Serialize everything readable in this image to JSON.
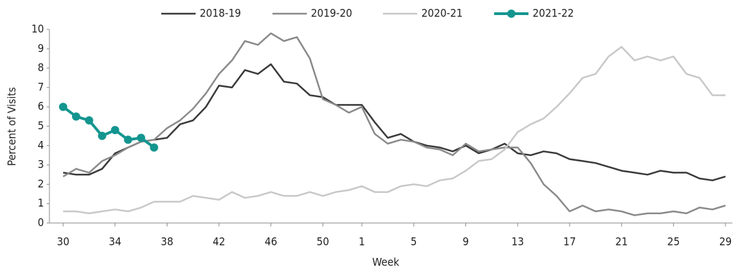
{
  "chart_data": {
    "type": "line",
    "x_label": "Week",
    "y_label": "Percent of Visits",
    "categories": [
      "30",
      null,
      null,
      null,
      "34",
      null,
      null,
      null,
      "38",
      null,
      null,
      null,
      "42",
      null,
      null,
      null,
      "46",
      null,
      null,
      null,
      "50",
      null,
      null,
      "1",
      null,
      null,
      null,
      "5",
      null,
      null,
      null,
      "9",
      null,
      null,
      null,
      "13",
      null,
      null,
      null,
      "17",
      null,
      null,
      null,
      "21",
      null,
      null,
      null,
      "25",
      null,
      null,
      null,
      "29"
    ],
    "ylim": [
      0,
      10
    ],
    "yticks": [
      0,
      1,
      2,
      3,
      4,
      5,
      6,
      7,
      8,
      9,
      10
    ],
    "legend": "top",
    "series": [
      {
        "name": "2018-19",
        "color": "#3a3a3a",
        "values": [
          2.6,
          2.5,
          2.5,
          2.8,
          3.6,
          3.9,
          4.2,
          4.3,
          4.4,
          5.1,
          5.3,
          6.0,
          7.1,
          7.0,
          7.9,
          7.7,
          8.2,
          7.3,
          7.2,
          6.6,
          6.5,
          6.1,
          6.1,
          6.1,
          5.2,
          4.4,
          4.6,
          4.2,
          4.0,
          3.9,
          3.7,
          4.0,
          3.6,
          3.8,
          4.1,
          3.6,
          3.5,
          3.7,
          3.6,
          3.3,
          3.2,
          3.1,
          2.9,
          2.7,
          2.6,
          2.5,
          2.7,
          2.6,
          2.6,
          2.3,
          2.2,
          2.4
        ]
      },
      {
        "name": "2019-20",
        "color": "#8a8a8a",
        "values": [
          2.4,
          2.8,
          2.6,
          3.2,
          3.5,
          3.9,
          4.2,
          4.3,
          4.9,
          5.3,
          5.9,
          6.7,
          7.7,
          8.4,
          9.4,
          9.2,
          9.8,
          9.4,
          9.6,
          8.5,
          6.4,
          6.1,
          5.7,
          6.0,
          4.6,
          4.1,
          4.3,
          4.2,
          3.9,
          3.8,
          3.5,
          4.1,
          3.7,
          3.8,
          3.9,
          3.9,
          3.1,
          2.0,
          1.4,
          0.6,
          0.9,
          0.6,
          0.7,
          0.6,
          0.4,
          0.5,
          0.5,
          0.6,
          0.5,
          0.8,
          0.7,
          0.9
        ]
      },
      {
        "name": "2020-21",
        "color": "#c8c8c8",
        "values": [
          0.6,
          0.6,
          0.5,
          0.6,
          0.7,
          0.6,
          0.8,
          1.1,
          1.1,
          1.1,
          1.4,
          1.3,
          1.2,
          1.6,
          1.3,
          1.4,
          1.6,
          1.4,
          1.4,
          1.6,
          1.4,
          1.6,
          1.7,
          1.9,
          1.6,
          1.6,
          1.9,
          2.0,
          1.9,
          2.2,
          2.3,
          2.7,
          3.2,
          3.3,
          3.8,
          4.7,
          5.1,
          5.4,
          6.0,
          6.7,
          7.5,
          7.7,
          8.6,
          9.1,
          8.4,
          8.6,
          8.4,
          8.6,
          7.7,
          7.5,
          6.6,
          6.6
        ]
      },
      {
        "name": "2021-22",
        "color": "#13958f",
        "markers": true,
        "values": [
          6.0,
          5.5,
          5.3,
          4.5,
          4.8,
          4.3,
          4.4,
          3.9,
          null,
          null,
          null,
          null,
          null,
          null,
          null,
          null,
          null,
          null,
          null,
          null,
          null,
          null,
          null,
          null,
          null,
          null,
          null,
          null,
          null,
          null,
          null,
          null,
          null,
          null,
          null,
          null,
          null,
          null,
          null,
          null,
          null,
          null,
          null,
          null,
          null,
          null,
          null,
          null,
          null,
          null,
          null,
          null
        ]
      }
    ]
  }
}
